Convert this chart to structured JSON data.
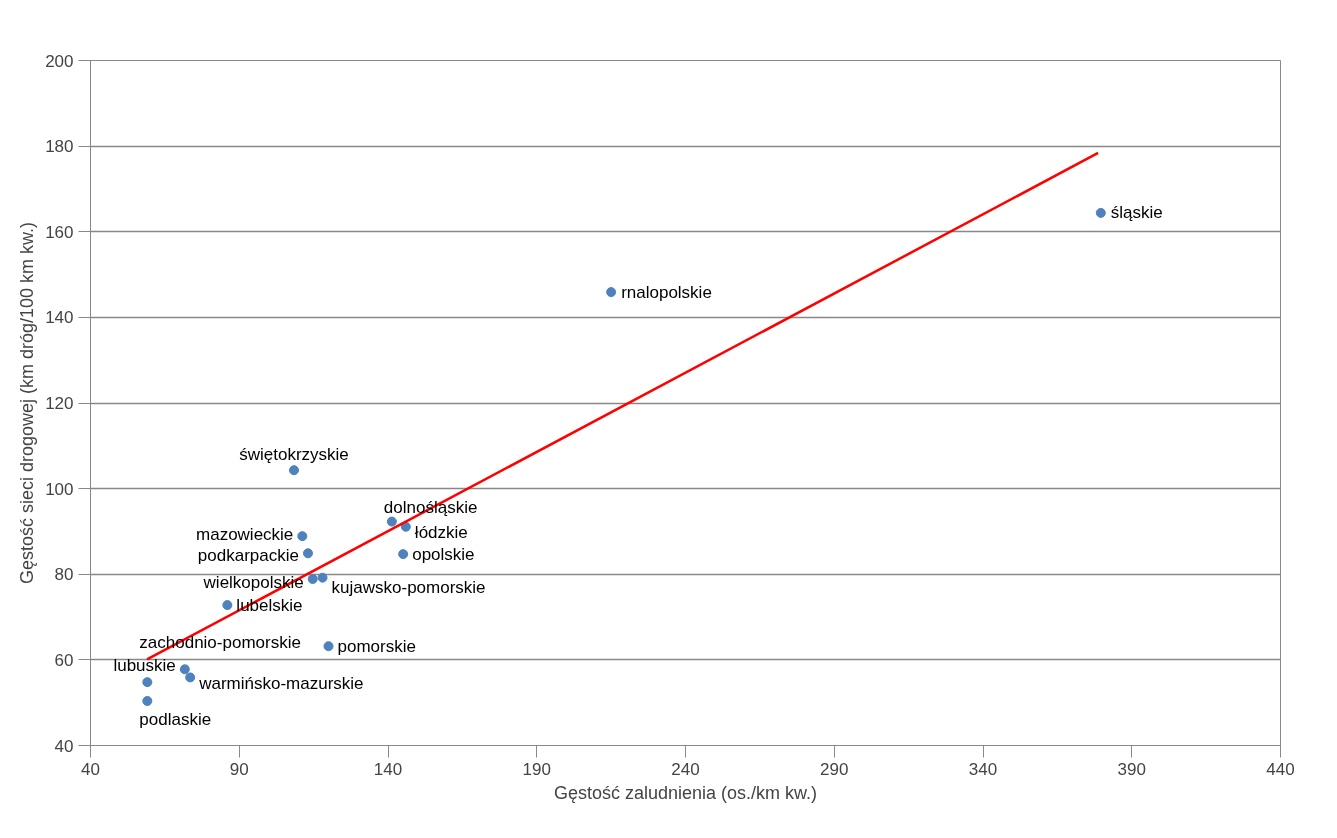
{
  "chart_data": {
    "type": "scatter",
    "xlabel": "Gęstość zaludnienia (os./km kw.)",
    "ylabel": "Gęstość sieci drogowej (km dróg/100 km kw.)",
    "xlim": [
      40,
      440
    ],
    "ylim": [
      40,
      200
    ],
    "xticks": [
      40,
      90,
      140,
      190,
      240,
      290,
      340,
      390,
      440
    ],
    "yticks": [
      40,
      60,
      80,
      100,
      120,
      140,
      160,
      180,
      200
    ],
    "grid": "y",
    "series": [
      {
        "name": "świętokrzyskie",
        "color": "#4f81bd",
        "x": [
          108.4
        ],
        "values": [
          104.3
        ]
      },
      {
        "name": "mazowieckie",
        "color": "#4f81bd",
        "x": [
          111.2
        ],
        "values": [
          88.9
        ]
      },
      {
        "name": "podkarpackie",
        "color": "#4f81bd",
        "x": [
          113.1
        ],
        "values": [
          84.9
        ]
      },
      {
        "name": "dolnośląskie",
        "color": "#4f81bd",
        "x": [
          141.3
        ],
        "values": [
          92.3
        ]
      },
      {
        "name": "łódzkie",
        "color": "#4f81bd",
        "x": [
          146.0
        ],
        "values": [
          91.1
        ]
      },
      {
        "name": "opolskie",
        "color": "#4f81bd",
        "x": [
          145.1
        ],
        "values": [
          84.7
        ]
      },
      {
        "name": "kujawsko-pomorskie",
        "color": "#4f81bd",
        "x": [
          118.0
        ],
        "values": [
          79.2
        ]
      },
      {
        "name": "wielkopolskie",
        "color": "#4f81bd",
        "x": [
          114.7
        ],
        "values": [
          78.9
        ]
      },
      {
        "name": "lubelskie",
        "color": "#4f81bd",
        "x": [
          86.0
        ],
        "values": [
          72.8
        ]
      },
      {
        "name": "pomorskie",
        "color": "#4f81bd",
        "x": [
          120.0
        ],
        "values": [
          63.2
        ]
      },
      {
        "name": "zachodnio-pomorskie",
        "color": "#4f81bd",
        "x": [
          59.1
        ],
        "values": [
          54.8
        ]
      },
      {
        "name": "lubuskie",
        "color": "#4f81bd",
        "x": [
          71.7
        ],
        "values": [
          57.8
        ]
      },
      {
        "name": "warmińsko-mazurskie",
        "color": "#4f81bd",
        "x": [
          73.5
        ],
        "values": [
          55.9
        ]
      },
      {
        "name": "podlaskie",
        "color": "#4f81bd",
        "x": [
          59.1
        ],
        "values": [
          50.4
        ]
      },
      {
        "name": "rnalopolskie",
        "color": "#4f81bd",
        "x": [
          215.0
        ],
        "values": [
          145.9
        ]
      },
      {
        "name": "śląskie",
        "color": "#4f81bd",
        "x": [
          379.6
        ],
        "values": [
          164.4
        ]
      },
      {
        "type": "line",
        "color": "#ff0000",
        "x": [
          59.0,
          378.7
        ],
        "values": [
          60.1,
          178.4
        ]
      }
    ]
  }
}
